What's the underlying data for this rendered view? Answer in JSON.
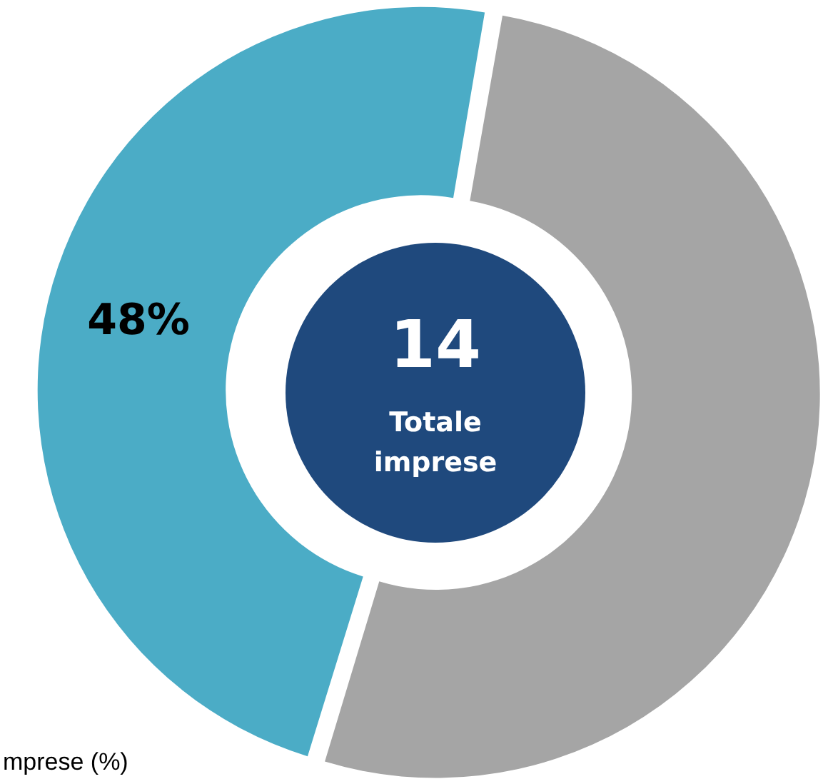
{
  "chart_data": {
    "type": "donut",
    "categories": [
      null,
      null
    ],
    "values": [
      48,
      52
    ],
    "colors": [
      "#4bacc6",
      "#a5a5a5"
    ],
    "value_labels": [
      "48%",
      null
    ],
    "annotations": [
      "14",
      "Totale imprese",
      "mprese (%)"
    ]
  }
}
